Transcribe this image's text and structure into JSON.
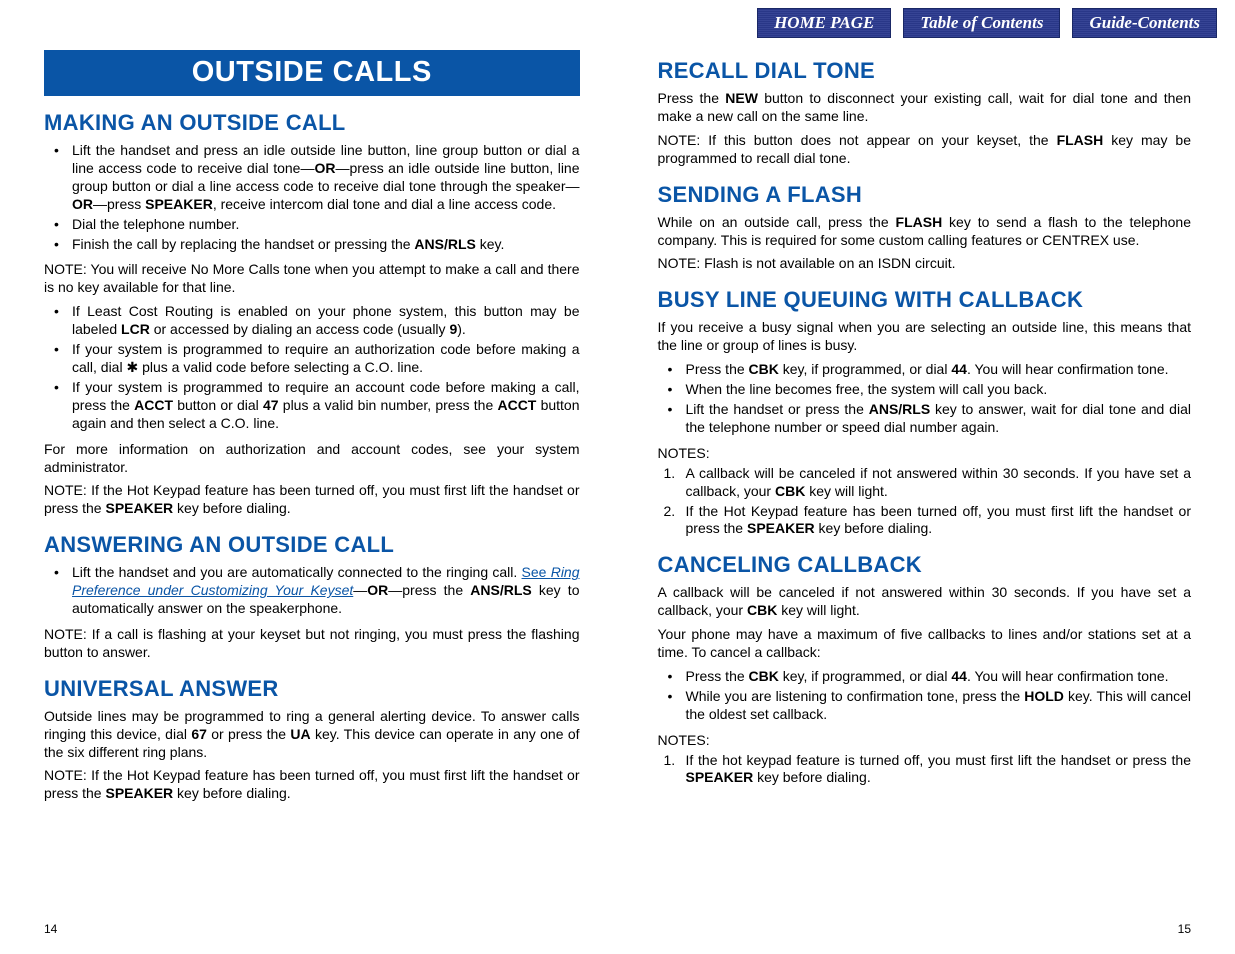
{
  "colors": {
    "accent_blue": "#0a55a6",
    "nav_blue": "#2b3a8f",
    "text": "#000000",
    "background": "#ffffff"
  },
  "nav": {
    "home": "HOME PAGE",
    "toc": "Table of Contents",
    "guide": "Guide-Contents"
  },
  "left": {
    "banner": "OUTSIDE CALLS",
    "s1": {
      "title": "MAKING AN OUTSIDE CALL",
      "b1": "Lift the handset and press an idle outside line button, line group button or dial a line access code to receive dial tone—<b>OR</b>—press an idle outside line button, line group button or dial a line access code to receive dial tone through the speaker—<b>OR</b>—press <b>SPEAKER</b>, receive intercom dial tone and dial a line access code.",
      "b2": "Dial the telephone number.",
      "b3": "Finish the call by replacing the handset or pressing the <b>ANS/RLS</b> key.",
      "note1": "NOTE:  You will receive No More Calls tone when you attempt to make a call and there is no key available for that line.",
      "b4": "If Least Cost Routing is enabled on your phone system, this button may be labeled <b>LCR</b> or accessed by dialing an access code (usually <b>9</b>).",
      "b5": "If your system is programmed to require an authorization code before making a call, dial ✱ plus a valid code before selecting a C.O. line.",
      "b6": "If your system is programmed to require an account code before making a call, press the <b>ACCT</b> button or dial <b>47</b> plus a valid bin number, press the <b>ACCT</b> button again and then select a C.O. line.",
      "p1": "For more information on authorization and account codes, see your system administrator.",
      "note2": "NOTE:  If the Hot Keypad feature has been turned off, you must first lift the handset or press the <b>SPEAKER</b> key before dialing."
    },
    "s2": {
      "title": "ANSWERING AN OUTSIDE CALL",
      "b1": "Lift the handset and you are automatically connected to the ringing call. <span class=\"link-pre\">See </span><span class=\"link\">Ring Preference under Customizing Your Keyset</span>—<b>OR</b>—press the <b>ANS/RLS</b> key to automatically answer on the speakerphone.",
      "note1": "NOTE:  If a call is flashing at your keyset but not ringing, you must press the flashing button to answer."
    },
    "s3": {
      "title": "UNIVERSAL ANSWER",
      "p1": "Outside lines may be programmed to ring a general alerting device. To answer calls ringing this device, dial <b>67</b> or press the <b>UA</b> key. This device can operate in any one of the six different ring plans.",
      "note1": "NOTE:  If the Hot Keypad feature has been turned off, you must first lift the handset or press the <b>SPEAKER</b> key before dialing."
    },
    "pagenum": "14"
  },
  "right": {
    "s1": {
      "title": "RECALL DIAL TONE",
      "p1": "Press the <b>NEW</b> button to disconnect your existing call, wait for dial tone and then make a new call on the same line.",
      "note1": "NOTE:  If this button does not appear on your keyset, the <b>FLASH</b> key may be programmed to recall dial tone."
    },
    "s2": {
      "title": "SENDING A FLASH",
      "p1": "While on an outside call, press the <b>FLASH</b> key to send a flash to the telephone company. This is required for some custom calling features or CENTREX use.",
      "note1": "NOTE: Flash is not available on an ISDN circuit."
    },
    "s3": {
      "title": "BUSY LINE QUEUING WITH CALLBACK",
      "p1": "If you receive a busy signal when you are selecting an outside line, this means that the line or group of lines is busy.",
      "b1": "Press the <b>CBK</b> key, if programmed, or dial <b>44</b>. You will hear confirmation tone.",
      "b2": "When the line becomes free, the system will call you back.",
      "b3": "Lift the handset or press the <b>ANS/RLS</b> key to answer, wait for dial tone and dial the telephone number or speed dial number again.",
      "noteslabel": "NOTES:",
      "n1": "A callback will be canceled if not answered within 30 seconds. If you have set a callback, your <b>CBK</b> key will light.",
      "n2": "If the Hot Keypad feature has been turned off, you must first lift the handset or press the <b>SPEAKER</b> key before dialing."
    },
    "s4": {
      "title": "CANCELING CALLBACK",
      "p1": "A callback will be canceled if not answered within 30 seconds. If you have set a  callback, your <b>CBK</b> key will light.",
      "p2": "Your phone may have a maximum of five callbacks to lines and/or stations set at a time. To cancel a callback:",
      "b1": "Press the <b>CBK</b> key, if programmed, or dial <b>44</b>. You will hear confirmation tone.",
      "b2": "While you are listening to confirmation tone, press the <b>HOLD</b> key. This will cancel the oldest set callback.",
      "noteslabel": "NOTES:",
      "n1": "If the hot keypad feature is turned off, you must first lift the handset or press the <b>SPEAKER</b> key before dialing."
    },
    "pagenum": "15"
  }
}
